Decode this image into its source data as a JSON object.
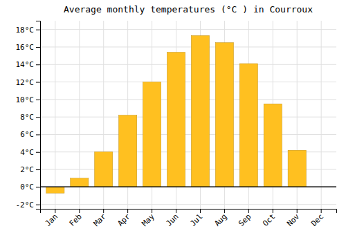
{
  "chart_data": {
    "type": "bar",
    "title": "Average monthly temperatures (°C ) in Courroux",
    "categories": [
      "Jan",
      "Feb",
      "Mar",
      "Apr",
      "May",
      "Jun",
      "Jul",
      "Aug",
      "Sep",
      "Oct",
      "Nov",
      "Dec"
    ],
    "values": [
      -0.7,
      1.0,
      4.0,
      8.2,
      12.0,
      15.4,
      17.3,
      16.5,
      14.1,
      9.5,
      4.2,
      0.0
    ],
    "color": "#FFC020",
    "ylim": [
      -2.5,
      19
    ],
    "yticks": [
      {
        "value": -2,
        "label": "-2°C"
      },
      {
        "value": 0,
        "label": "0°C"
      },
      {
        "value": 2,
        "label": "2°C"
      },
      {
        "value": 4,
        "label": "4°C"
      },
      {
        "value": 6,
        "label": "6°C"
      },
      {
        "value": 8,
        "label": "8°C"
      },
      {
        "value": 10,
        "label": "10°C"
      },
      {
        "value": 12,
        "label": "12°C"
      },
      {
        "value": 14,
        "label": "14°C"
      },
      {
        "value": 16,
        "label": "16°C"
      },
      {
        "value": 18,
        "label": "18°C"
      }
    ],
    "grid": true
  }
}
